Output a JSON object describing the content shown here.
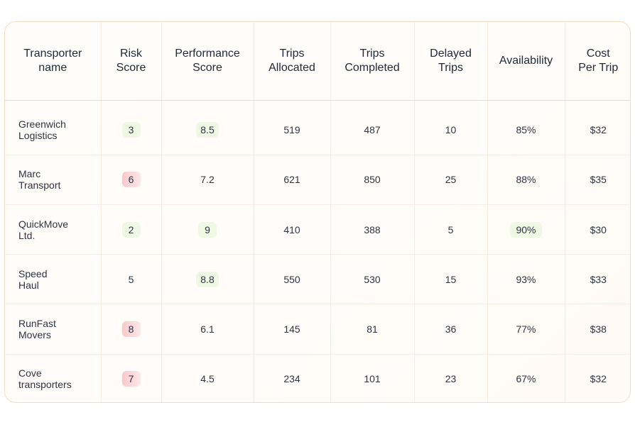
{
  "table": {
    "headers": [
      [
        "Transporter",
        "name"
      ],
      [
        "Risk",
        "Score"
      ],
      [
        "Performance",
        "Score"
      ],
      [
        "Trips",
        "Allocated"
      ],
      [
        "Trips",
        "Completed"
      ],
      [
        "Delayed",
        "Trips"
      ],
      [
        "Availability"
      ],
      [
        "Cost",
        "Per Trip"
      ]
    ],
    "rows": [
      {
        "name": [
          "Greenwich",
          "Logistics"
        ],
        "risk": "3",
        "risk_level": "low",
        "performance": "8.5",
        "performance_highlight": true,
        "allocated": "519",
        "completed": "487",
        "delayed": "10",
        "availability": "85%",
        "availability_highlight": false,
        "cost": "$32"
      },
      {
        "name": [
          "Marc",
          "Transport"
        ],
        "risk": "6",
        "risk_level": "high",
        "performance": "7.2",
        "performance_highlight": false,
        "allocated": "621",
        "completed": "850",
        "delayed": "25",
        "availability": "88%",
        "availability_highlight": false,
        "cost": "$35"
      },
      {
        "name": [
          "QuickMove",
          "Ltd."
        ],
        "risk": "2",
        "risk_level": "low",
        "performance": "9",
        "performance_highlight": true,
        "allocated": "410",
        "completed": "388",
        "delayed": "5",
        "availability": "90%",
        "availability_highlight": true,
        "cost": "$30"
      },
      {
        "name": [
          "Speed",
          "Haul"
        ],
        "risk": "5",
        "risk_level": "none",
        "performance": "8.8",
        "performance_highlight": true,
        "allocated": "550",
        "completed": "530",
        "delayed": "15",
        "availability": "93%",
        "availability_highlight": false,
        "cost": "$33"
      },
      {
        "name": [
          "RunFast",
          "Movers"
        ],
        "risk": "8",
        "risk_level": "high",
        "performance": "6.1",
        "performance_highlight": false,
        "allocated": "145",
        "completed": "81",
        "delayed": "36",
        "availability": "77%",
        "availability_highlight": false,
        "cost": "$38"
      },
      {
        "name": [
          "Cove",
          "transporters"
        ],
        "risk": "7",
        "risk_level": "high",
        "performance": "4.5",
        "performance_highlight": false,
        "allocated": "234",
        "completed": "101",
        "delayed": "23",
        "availability": "67%",
        "availability_highlight": false,
        "cost": "$32"
      }
    ]
  },
  "colors": {
    "card_border": "#f3dcc4",
    "low_risk_pill": "#eef8e5",
    "high_risk_pill": "#f8c9cc"
  }
}
